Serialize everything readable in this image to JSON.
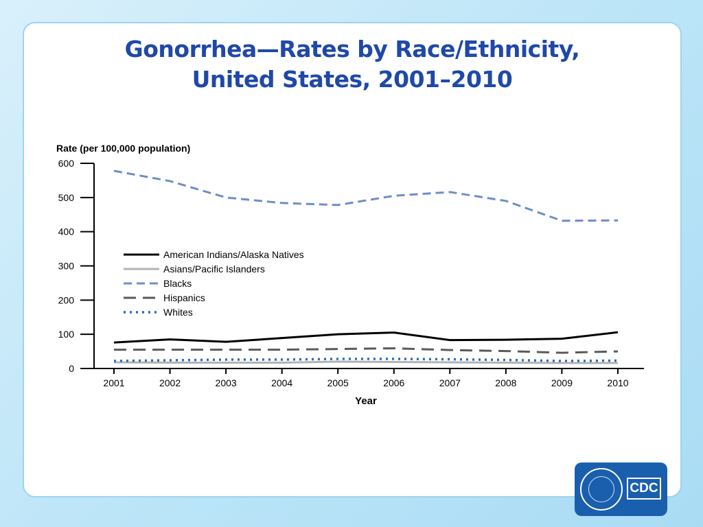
{
  "slide": {
    "title_line1": "Gonorrhea—Rates by Race/Ethnicity,",
    "title_line2": "United States, 2001–2010"
  },
  "logo": {
    "text": "CDC",
    "icon": "hhs-eagle-icon"
  },
  "chart_data": {
    "type": "line",
    "ylabel": "Rate (per 100,000 population)",
    "xlabel": "Year",
    "x": [
      "2001",
      "2002",
      "2003",
      "2004",
      "2005",
      "2006",
      "2007",
      "2008",
      "2009",
      "2010"
    ],
    "ylim": [
      0,
      600
    ],
    "yticks": [
      0,
      100,
      200,
      300,
      400,
      500,
      600
    ],
    "grid": false,
    "legend": "inside-middle-left",
    "series": [
      {
        "name": "American Indians/Alaska Natives",
        "color": "#000000",
        "dash": "solid",
        "values": [
          76,
          85,
          78,
          89,
          100,
          105,
          83,
          84,
          87,
          106
        ]
      },
      {
        "name": "Asians/Pacific Islanders",
        "color": "#b3b3b3",
        "dash": "solid",
        "values": [
          18,
          17,
          17,
          17,
          20,
          19,
          18,
          17,
          16,
          16
        ]
      },
      {
        "name": "Blacks",
        "color": "#6b8fc6",
        "dash": "dashed",
        "values": [
          578,
          548,
          500,
          484,
          478,
          505,
          516,
          490,
          432,
          433
        ]
      },
      {
        "name": "Hispanics",
        "color": "#5a5a5a",
        "dash": "longdash",
        "values": [
          55,
          55,
          55,
          55,
          57,
          59,
          54,
          51,
          46,
          50
        ]
      },
      {
        "name": "Whites",
        "color": "#2b6eb5",
        "dash": "dotted",
        "values": [
          22,
          24,
          26,
          26,
          28,
          28,
          27,
          25,
          22,
          23
        ]
      }
    ]
  }
}
